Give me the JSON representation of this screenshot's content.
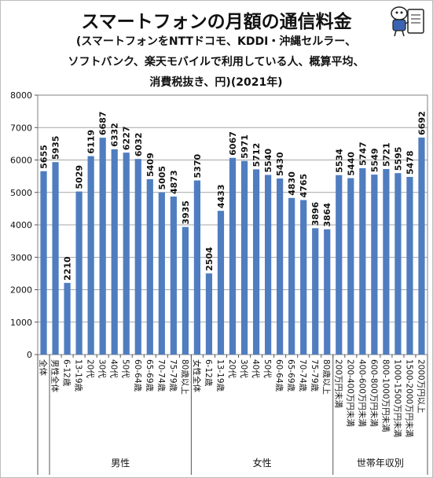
{
  "chart_data": {
    "type": "bar",
    "title": "スマートフォンの月額の通信料金",
    "subtitle_lines": [
      "(スマートフォンをNTTドコモ、KDDI・沖縄セルラー、",
      "ソフトバンク、楽天モバイルで利用している人、概算平均、",
      "消費税抜き、円)(2021年)"
    ],
    "ylim": [
      0,
      8000
    ],
    "yticks": [
      0,
      1000,
      2000,
      3000,
      4000,
      5000,
      6000,
      7000,
      8000
    ],
    "grid": true,
    "bar_color": "#4f7dbf",
    "categories": [
      "全体",
      "男性全体",
      "6-12歳",
      "13-19歳",
      "20代",
      "30代",
      "40代",
      "50代",
      "60-64歳",
      "65-69歳",
      "70-74歳",
      "75-79歳",
      "80歳以上",
      "女性全体",
      "6-12歳",
      "13-19歳",
      "20代",
      "30代",
      "40代",
      "50代",
      "60-64歳",
      "65-69歳",
      "70-74歳",
      "75-79歳",
      "80歳以上",
      "200万円未満",
      "200-400万円未満",
      "400-600万円未満",
      "600-800万円未満",
      "800-1000万円未満",
      "1000-1500万円未満",
      "1500-2000万円未満",
      "2000万円以上"
    ],
    "values": [
      5655,
      5935,
      2210,
      5029,
      6119,
      6687,
      6332,
      6227,
      6032,
      5409,
      5005,
      4873,
      3935,
      5370,
      2504,
      4433,
      6067,
      5971,
      5712,
      5540,
      5430,
      4830,
      4765,
      3896,
      3864,
      5534,
      5440,
      5747,
      5549,
      5721,
      5595,
      5478,
      6692
    ],
    "groups": [
      {
        "label": "男性",
        "start": 1,
        "end": 12
      },
      {
        "label": "女性",
        "start": 13,
        "end": 24
      },
      {
        "label": "世帯年収別",
        "start": 25,
        "end": 32
      }
    ]
  }
}
